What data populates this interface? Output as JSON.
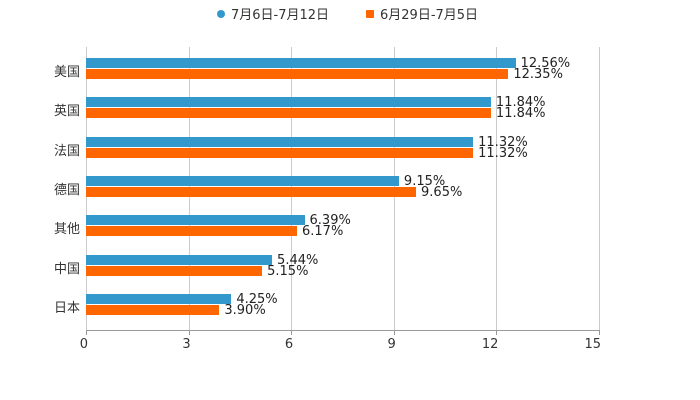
{
  "chart_data": {
    "type": "bar",
    "orientation": "horizontal",
    "title": "",
    "xlabel": "",
    "ylabel": "",
    "categories": [
      "美国",
      "英国",
      "法国",
      "德国",
      "其他",
      "中国",
      "日本"
    ],
    "series": [
      {
        "name": "7月6日-7月12日",
        "color": "#3399cc",
        "values": [
          12.56,
          11.84,
          11.32,
          9.15,
          6.39,
          5.44,
          4.25
        ],
        "labels": [
          "12.56%",
          "11.84%",
          "11.32%",
          "9.15%",
          "6.39%",
          "5.44%",
          "4.25%"
        ]
      },
      {
        "name": "6月29日-7月5日",
        "color": "#ff6600",
        "values": [
          12.35,
          11.84,
          11.32,
          9.65,
          6.17,
          5.15,
          3.9
        ],
        "labels": [
          "12.35%",
          "11.84%",
          "11.32%",
          "9.65%",
          "6.17%",
          "5.15%",
          "3.90%"
        ]
      }
    ],
    "xlim": [
      0,
      15
    ],
    "xticks": [
      "0",
      "3",
      "6",
      "9",
      "12",
      "15"
    ],
    "grid": true,
    "legend_position": "top"
  },
  "legend": {
    "items": [
      {
        "label": "7月6日-7月12日",
        "color": "#3399cc"
      },
      {
        "label": "6月29日-7月5日",
        "color": "#ff6600"
      }
    ]
  }
}
